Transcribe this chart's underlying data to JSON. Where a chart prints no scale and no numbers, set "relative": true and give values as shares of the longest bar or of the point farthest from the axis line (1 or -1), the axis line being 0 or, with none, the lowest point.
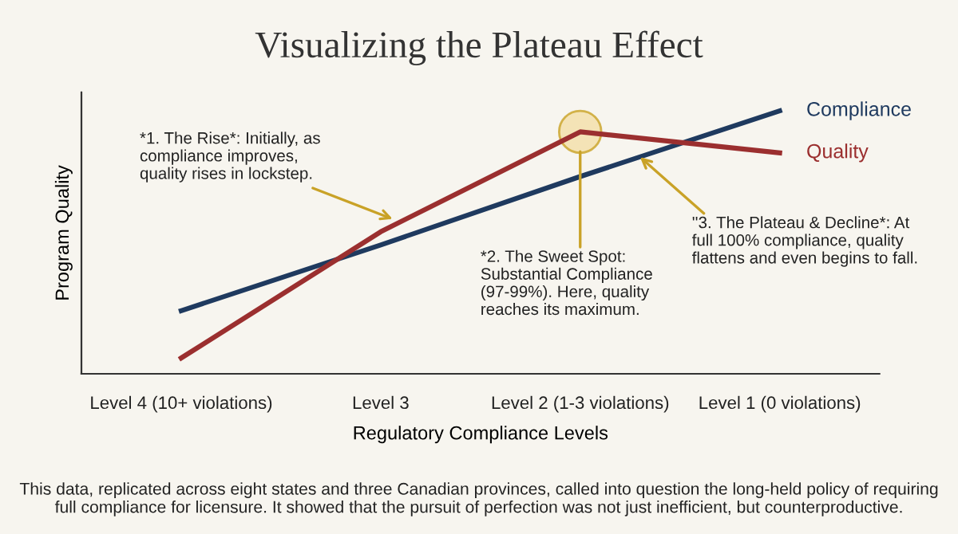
{
  "chart_data": {
    "type": "line",
    "title": "Visualizing the Plateau Effect",
    "xlabel": "Regulatory Compliance Levels",
    "ylabel": "Program Quality",
    "relative": true,
    "categories": [
      "Level 4 (10+ violations)",
      "Level 3",
      "Level 2 (1-3 violations)",
      "Level 1 (0 violations)"
    ],
    "series": [
      {
        "name": "Compliance",
        "color": "#1f3a5f",
        "values": [
          0.24,
          0.49,
          0.75,
          1
        ]
      },
      {
        "name": "Quality",
        "color": "#9b2f2f",
        "values": [
          0.06,
          0.54,
          0.92,
          0.84
        ]
      }
    ],
    "grid": false,
    "legend": false,
    "marker": "none",
    "line_style": "solid",
    "annotations": [
      "*1. The Rise*: Initially, as\ncompliance improves,\nquality rises in lockstep.",
      "*2. The Sweet Spot:\nSubstantial Compliance\n(97-99%). Here, quality\nreaches its maximum.",
      "''3. The Plateau & Decline*: At\nfull 100% compliance, quality\nflattens and even begins to fall.",
      "This data, replicated across eight states and three Canadian provinces, called into question the long-held policy of requiring\nfull compliance for licensure. It showed that the pursuit of perfection was not just inefficient, but counterproductive."
    ]
  }
}
